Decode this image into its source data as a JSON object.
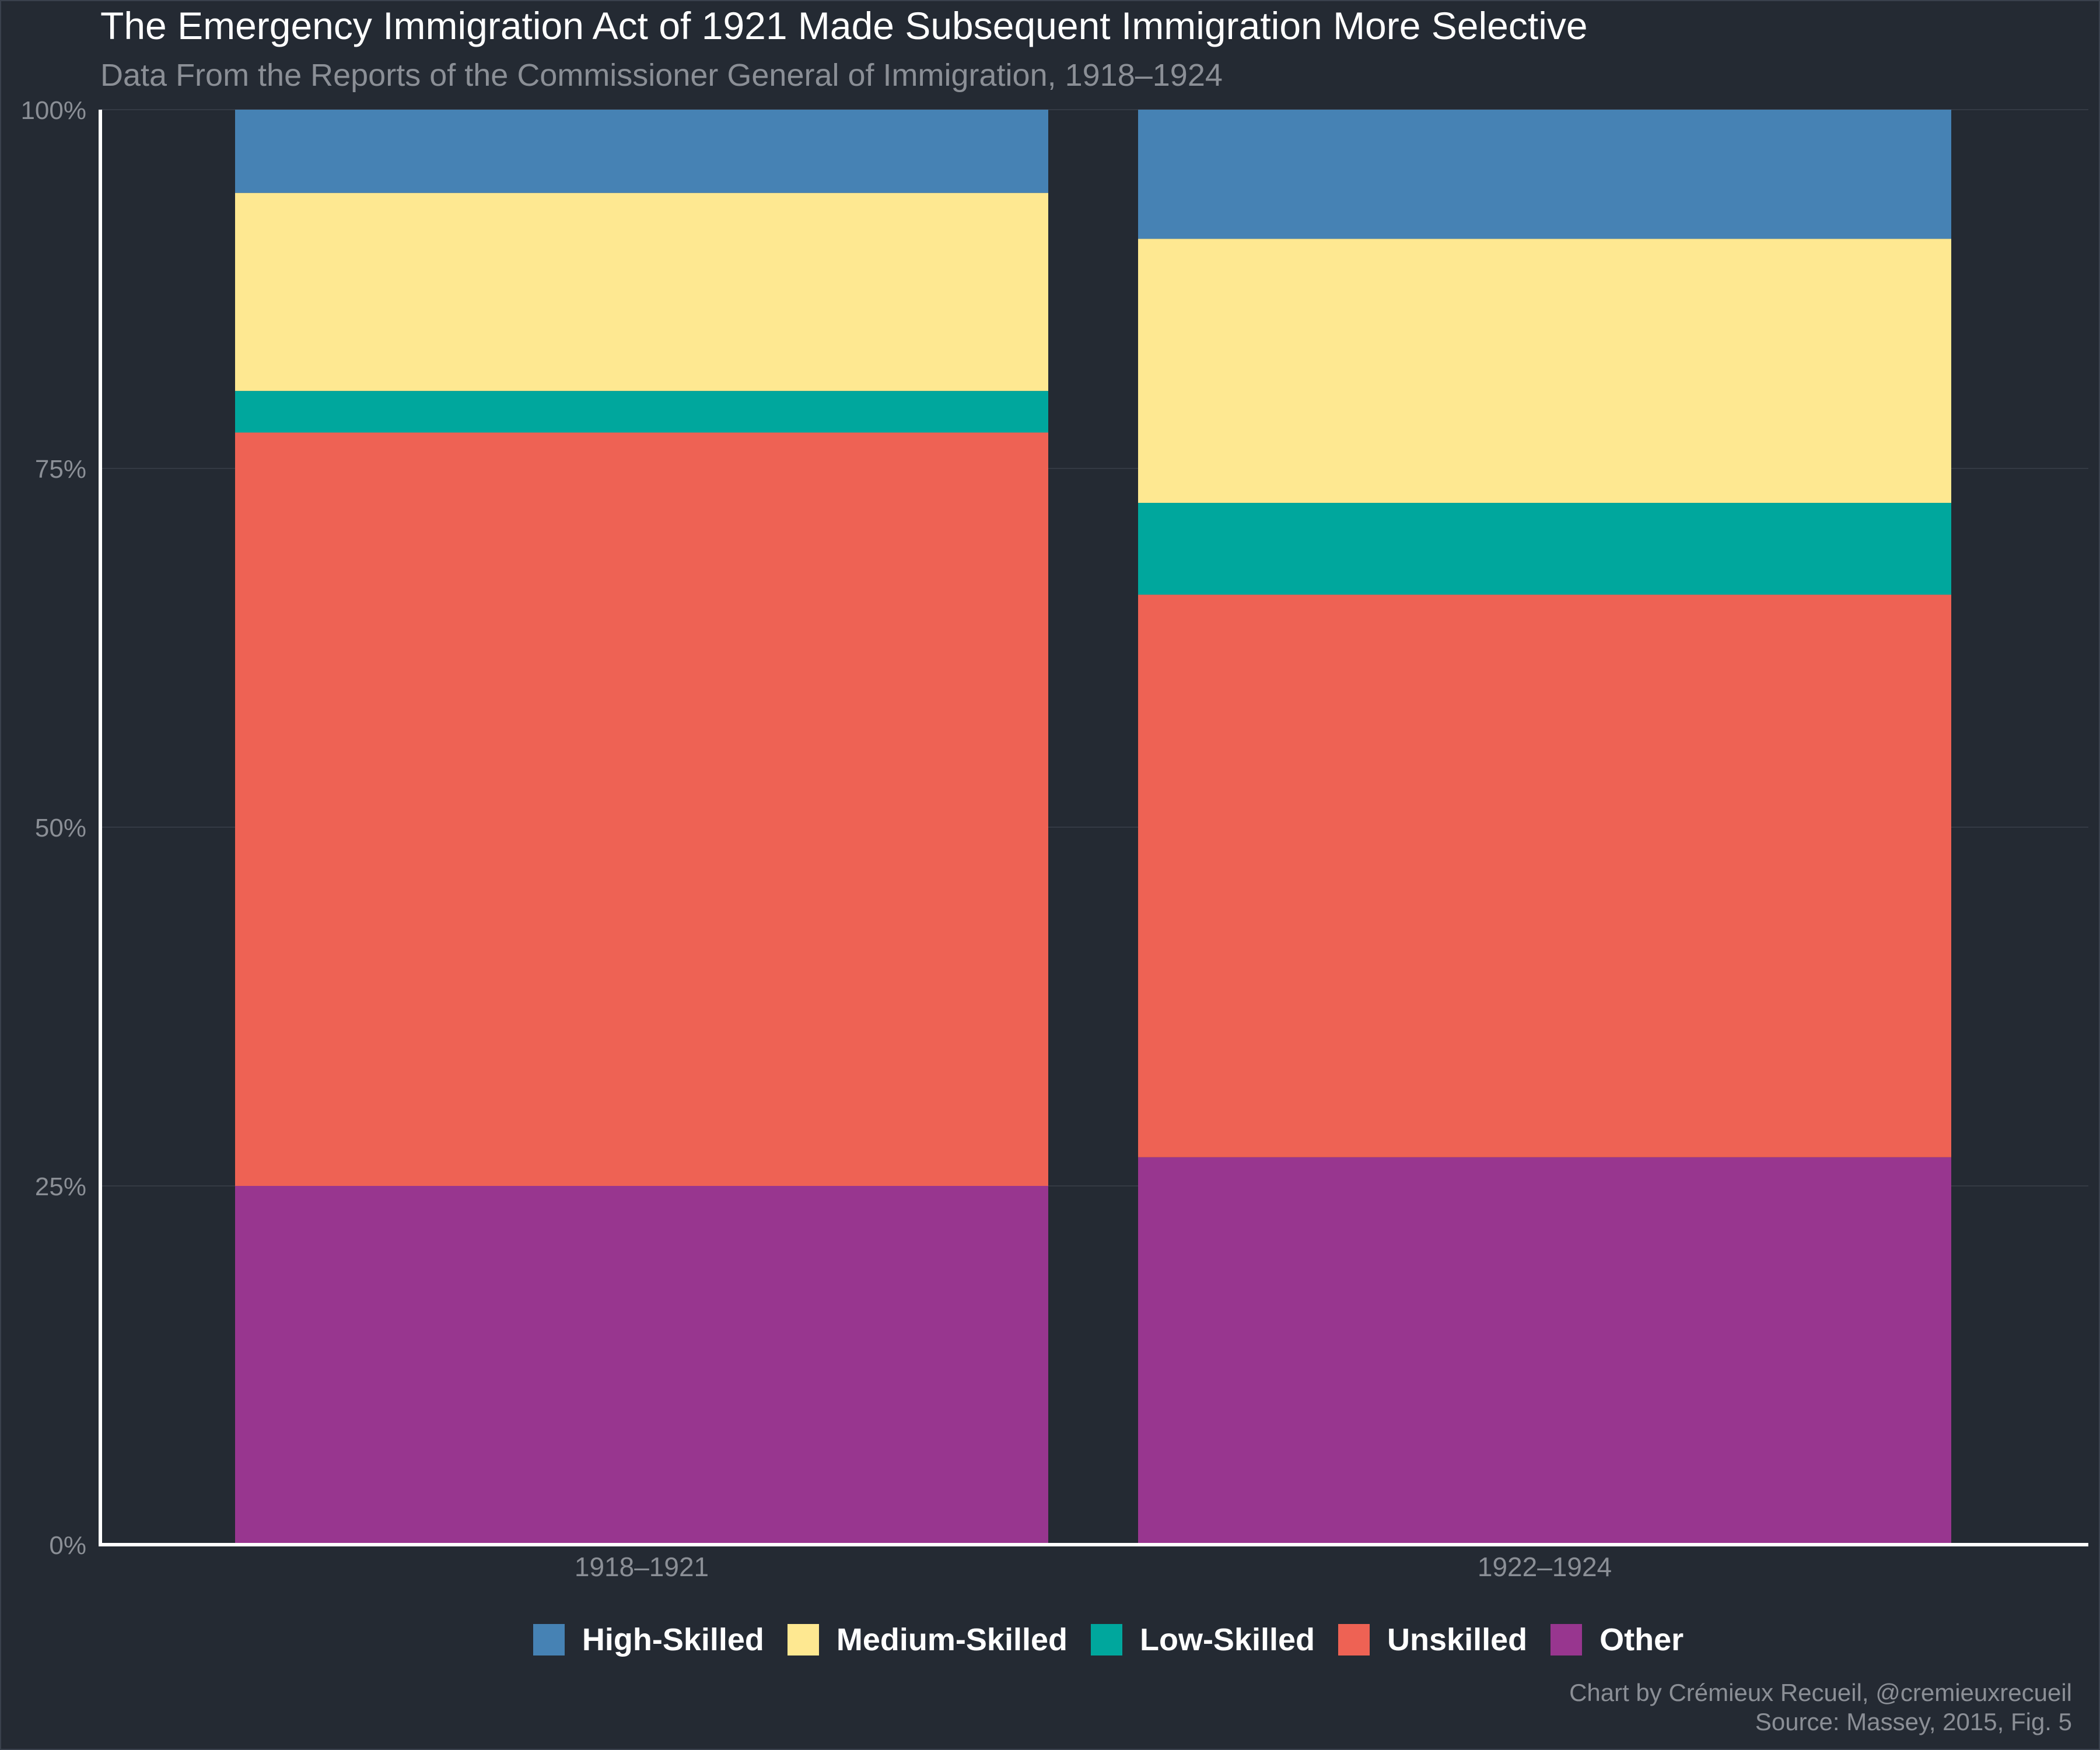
{
  "title": "The Emergency Immigration Act of 1921 Made Subsequent Immigration More Selective",
  "subtitle": "Data From the Reports of the Commissioner General of Immigration, 1918–1924",
  "credit": "Chart by Crémieux Recueil, @cremieuxrecueil",
  "source": "Source: Massey, 2015, Fig. 5",
  "colors": {
    "background": "#242a33",
    "axis": "#ffffff",
    "gridline": "#343a44",
    "tick_text": "#8b8f96",
    "high_skilled": "#4682b4",
    "medium_skilled": "#fee891",
    "low_skilled": "#00a79d",
    "unskilled": "#ee6254",
    "other": "#98368f"
  },
  "chart_data": {
    "type": "bar",
    "stacked": true,
    "categories": [
      "1918–1921",
      "1922–1924"
    ],
    "series": [
      {
        "name": "Other",
        "color": "#98368f",
        "values": [
          25.0,
          27.0
        ]
      },
      {
        "name": "Unskilled",
        "color": "#ee6254",
        "values": [
          52.5,
          39.2
        ]
      },
      {
        "name": "Low-Skilled",
        "color": "#00a79d",
        "values": [
          2.9,
          6.4
        ]
      },
      {
        "name": "Medium-Skilled",
        "color": "#fee891",
        "values": [
          13.8,
          18.4
        ]
      },
      {
        "name": "High-Skilled",
        "color": "#4682b4",
        "values": [
          5.8,
          9.0
        ]
      }
    ],
    "legend_order": [
      "High-Skilled",
      "Medium-Skilled",
      "Low-Skilled",
      "Unskilled",
      "Other"
    ],
    "ylim": [
      0,
      100
    ],
    "yticks": [
      0,
      25,
      50,
      75,
      100
    ],
    "ytick_labels": [
      "0%",
      "25%",
      "50%",
      "75%",
      "100%"
    ],
    "xlabel": "",
    "ylabel": "",
    "grid": true,
    "legend_position": "bottom"
  }
}
